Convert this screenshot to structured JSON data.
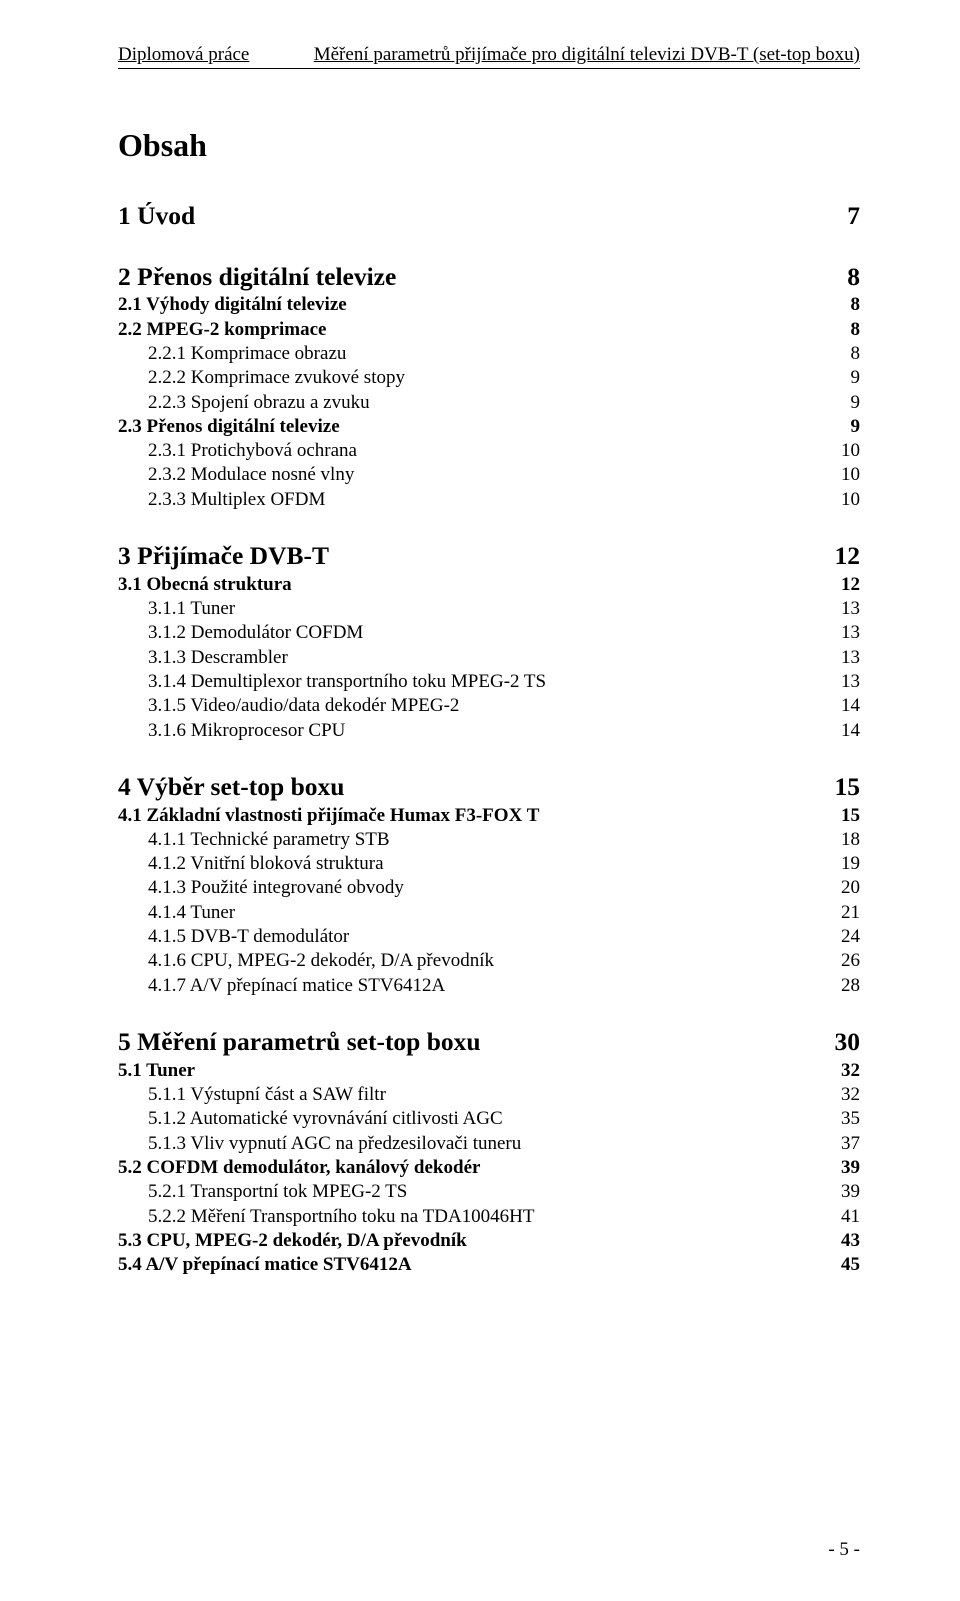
{
  "running_head": {
    "left": "Diplomová práce",
    "right": "Měření parametrů přijímače pro digitální televizi DVB-T (set-top boxu)"
  },
  "title": "Obsah",
  "page_number": "- 5 -",
  "toc": [
    {
      "level": 1,
      "label": "1 Úvod",
      "page": "7"
    },
    {
      "level": 1,
      "label": "2 Přenos digitální televize",
      "page": "8"
    },
    {
      "level": 2,
      "label": "2.1 Výhody digitální televize",
      "page": "8"
    },
    {
      "level": 2,
      "label": "2.2 MPEG-2 komprimace",
      "page": "8"
    },
    {
      "level": 3,
      "label": "2.2.1 Komprimace obrazu",
      "page": "8"
    },
    {
      "level": 3,
      "label": "2.2.2 Komprimace zvukové stopy",
      "page": "9"
    },
    {
      "level": 3,
      "label": "2.2.3 Spojení obrazu a zvuku",
      "page": "9"
    },
    {
      "level": 2,
      "label": "2.3 Přenos digitální televize",
      "page": "9"
    },
    {
      "level": 3,
      "label": "2.3.1 Protichybová ochrana",
      "page": "10"
    },
    {
      "level": 3,
      "label": "2.3.2 Modulace nosné vlny",
      "page": "10"
    },
    {
      "level": 3,
      "label": "2.3.3 Multiplex OFDM",
      "page": "10"
    },
    {
      "level": 1,
      "label": "3 Přijímače DVB-T",
      "page": "12"
    },
    {
      "level": 2,
      "label": "3.1 Obecná struktura",
      "page": "12"
    },
    {
      "level": 3,
      "label": "3.1.1 Tuner",
      "page": "13"
    },
    {
      "level": 3,
      "label": "3.1.2 Demodulátor COFDM",
      "page": "13"
    },
    {
      "level": 3,
      "label": "3.1.3 Descrambler",
      "page": "13"
    },
    {
      "level": 3,
      "label": "3.1.4 Demultiplexor transportního toku MPEG-2 TS",
      "page": "13"
    },
    {
      "level": 3,
      "label": "3.1.5 Video/audio/data dekodér MPEG-2",
      "page": "14"
    },
    {
      "level": 3,
      "label": "3.1.6 Mikroprocesor CPU",
      "page": "14"
    },
    {
      "level": 1,
      "label": "4 Výběr set-top boxu",
      "page": "15"
    },
    {
      "level": 2,
      "label": "4.1 Základní vlastnosti přijímače Humax F3-FOX T",
      "page": "15"
    },
    {
      "level": 3,
      "label": "4.1.1 Technické parametry STB",
      "page": "18"
    },
    {
      "level": 3,
      "label": "4.1.2 Vnitřní bloková struktura",
      "page": "19"
    },
    {
      "level": 3,
      "label": "4.1.3 Použité integrované obvody",
      "page": "20"
    },
    {
      "level": 3,
      "label": "4.1.4 Tuner",
      "page": "21"
    },
    {
      "level": 3,
      "label": "4.1.5 DVB-T demodulátor",
      "page": "24"
    },
    {
      "level": 3,
      "label": "4.1.6 CPU, MPEG-2 dekodér, D/A převodník",
      "page": "26"
    },
    {
      "level": 3,
      "label": "4.1.7 A/V přepínací matice STV6412A",
      "page": "28"
    },
    {
      "level": 1,
      "label": "5 Měření parametrů set-top boxu",
      "page": "30"
    },
    {
      "level": 2,
      "label": "5.1 Tuner",
      "page": "32"
    },
    {
      "level": 3,
      "label": "5.1.1 Výstupní část a SAW filtr",
      "page": "32"
    },
    {
      "level": 3,
      "label": "5.1.2 Automatické vyrovnávání citlivosti AGC",
      "page": "35"
    },
    {
      "level": 3,
      "label": "5.1.3 Vliv vypnutí AGC na předzesilovači tuneru",
      "page": "37"
    },
    {
      "level": 2,
      "label": "5.2 COFDM demodulátor, kanálový dekodér",
      "page": "39"
    },
    {
      "level": 3,
      "label": "5.2.1 Transportní tok MPEG-2 TS",
      "page": "39"
    },
    {
      "level": 3,
      "label": "5.2.2 Měření Transportního toku na TDA10046HT",
      "page": "41"
    },
    {
      "level": 2,
      "label": "5.3 CPU, MPEG-2 dekodér, D/A převodník",
      "page": "43"
    },
    {
      "level": 2,
      "label": "5.4 A/V přepínací matice STV6412A",
      "page": "45"
    }
  ]
}
